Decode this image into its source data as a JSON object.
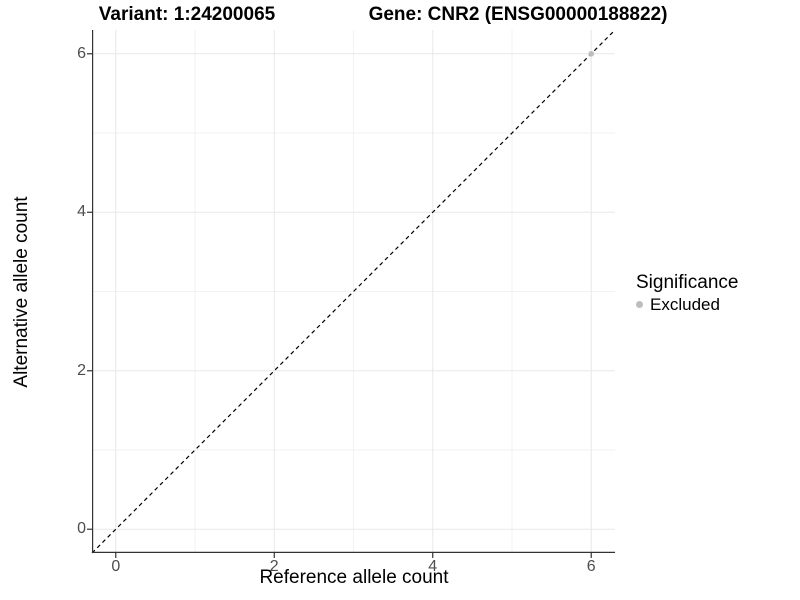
{
  "figure": {
    "title_variant": "Variant: 1:24200065",
    "title_gene": "Gene: CNR2 (ENSG00000188822)"
  },
  "chart_data": {
    "type": "scatter",
    "title": "Variant: 1:24200065    Gene: CNR2 (ENSG00000188822)",
    "xlabel": "Reference allele count",
    "ylabel": "Alternative allele count",
    "xlim": [
      -0.3,
      6.3
    ],
    "ylim": [
      -0.3,
      6.3
    ],
    "x_ticks": [
      0,
      2,
      4,
      6
    ],
    "y_ticks": [
      0,
      2,
      4,
      6
    ],
    "x_minor_ticks": [
      1,
      3,
      5
    ],
    "y_minor_ticks": [
      1,
      3,
      5
    ],
    "grid": true,
    "series": [
      {
        "name": "Excluded",
        "color": "#bdbdbd",
        "points": [
          {
            "x": 6,
            "y": 6
          }
        ]
      }
    ],
    "reference_line": {
      "type": "identity",
      "slope": 1,
      "intercept": 0,
      "style": "dashed",
      "color": "#000000"
    },
    "legend": {
      "title": "Significance",
      "position": "right",
      "entries": [
        {
          "label": "Excluded",
          "color": "#bdbdbd"
        }
      ]
    },
    "style": {
      "grid_major_color": "#e8e8e8",
      "grid_minor_color": "#f2f2f2",
      "axis_line_color": "#333333",
      "tick_label_color": "#4d4d4d",
      "point_radius": 2.8
    }
  }
}
